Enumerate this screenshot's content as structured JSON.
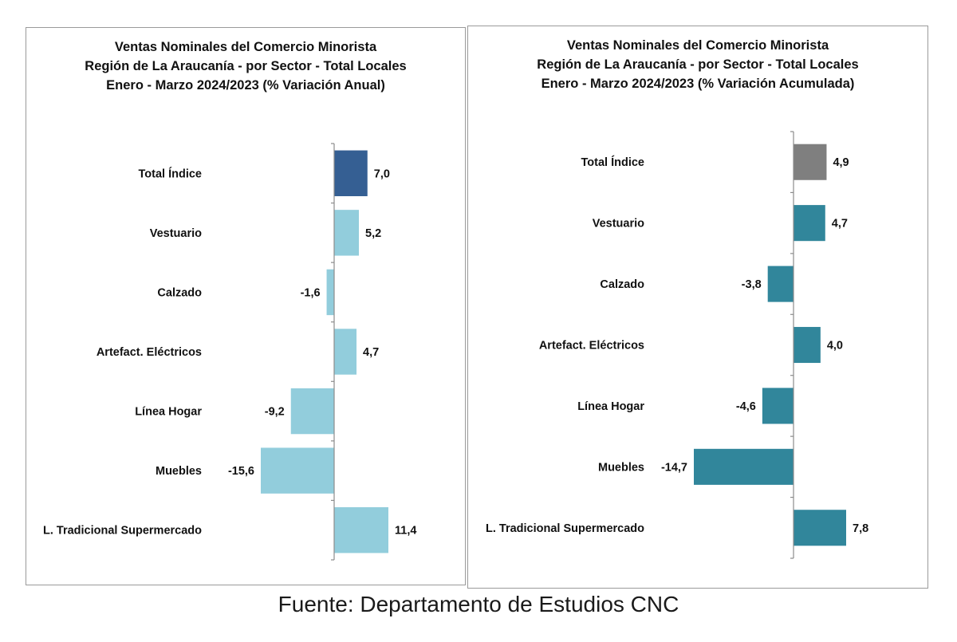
{
  "source_note": "Fuente: Departamento de Estudios CNC",
  "chart_data": [
    {
      "type": "bar",
      "orientation": "horizontal",
      "title_lines": [
        "Ventas Nominales del Comercio Minorista",
        "Región de La Araucanía - por Sector - Total Locales",
        "Enero - Marzo 2024/2023 (% Variación Anual)"
      ],
      "categories": [
        "Total Índice",
        "Vestuario",
        "Calzado",
        "Artefact. Eléctricos",
        "Línea Hogar",
        "Muebles",
        "L. Tradicional Supermercado"
      ],
      "values": [
        7.0,
        5.2,
        -1.6,
        4.7,
        -9.2,
        -15.6,
        11.4
      ],
      "data_labels": [
        "7,0",
        "5,2",
        "-1,6",
        "4,7",
        "-9,2",
        "-15,6",
        "11,4"
      ],
      "colors": [
        "#355f93",
        "#92cddc",
        "#92cddc",
        "#92cddc",
        "#92cddc",
        "#92cddc",
        "#92cddc"
      ],
      "xlim": [
        -15.6,
        11.4
      ],
      "grid": false,
      "legend": "none"
    },
    {
      "type": "bar",
      "orientation": "horizontal",
      "title_lines": [
        "Ventas Nominales del Comercio Minorista",
        "Región de La Araucanía - por Sector - Total Locales",
        "Enero - Marzo 2024/2023 (% Variación Acumulada)"
      ],
      "categories": [
        "Total Índice",
        "Vestuario",
        "Calzado",
        "Artefact. Eléctricos",
        "Línea Hogar",
        "Muebles",
        "L. Tradicional Supermercado"
      ],
      "values": [
        4.9,
        4.7,
        -3.8,
        4.0,
        -4.6,
        -14.7,
        7.8
      ],
      "data_labels": [
        "4,9",
        "4,7",
        "-3,8",
        "4,0",
        "-4,6",
        "-14,7",
        "7,8"
      ],
      "colors": [
        "#7f7f7f",
        "#31869b",
        "#31869b",
        "#31869b",
        "#31869b",
        "#31869b",
        "#31869b"
      ],
      "xlim": [
        -14.7,
        7.8
      ],
      "grid": false,
      "legend": "none"
    }
  ]
}
